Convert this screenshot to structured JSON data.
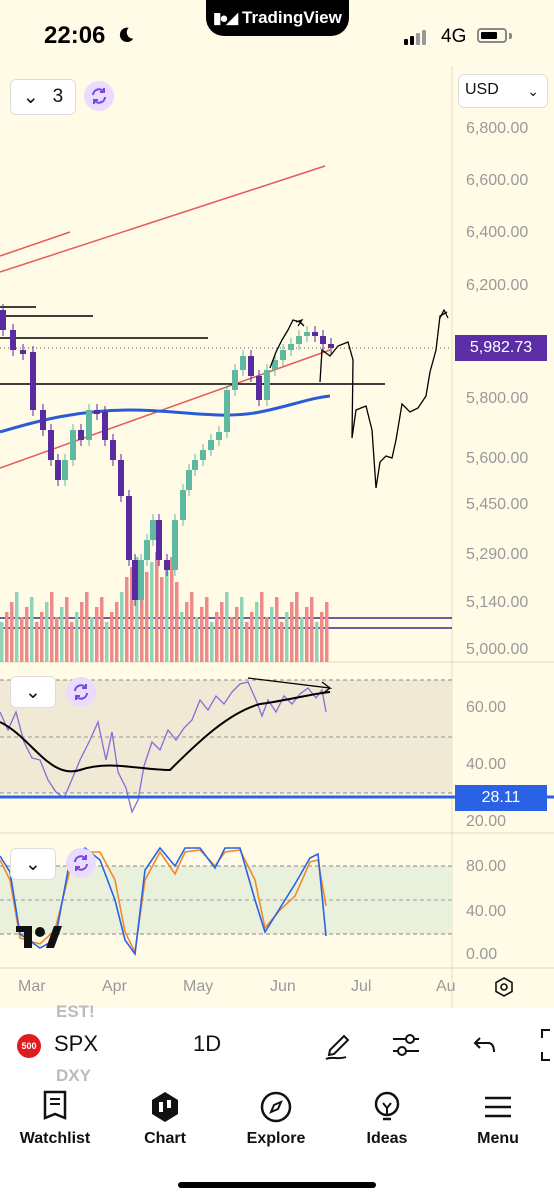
{
  "status_bar": {
    "time": "22:06",
    "network": "4G",
    "app_name": "TradingView"
  },
  "chart": {
    "symbol": "SPX",
    "interval": "1D",
    "currency": "USD",
    "indicator_count": "3",
    "last_price": "5,982.73",
    "rsi_value": "28.11",
    "price_axis": [
      "6,800.00",
      "6,600.00",
      "6,400.00",
      "6,200.00",
      "5,800.00",
      "5,600.00",
      "5,450.00",
      "5,290.00",
      "5,140.00",
      "5,000.00"
    ],
    "rsi_axis": [
      "60.00",
      "40.00",
      "20.00"
    ],
    "stoch_axis": [
      "80.00",
      "40.00",
      "0.00"
    ],
    "time_axis": [
      "Mar",
      "Apr",
      "May",
      "Jun",
      "Jul",
      "Au"
    ],
    "ghost_watchlist": [
      "EST!",
      "DXY"
    ],
    "colors": {
      "price_tag": "#5b2ea6",
      "rsi_tag": "#2a62e6",
      "ma_line": "#2a5bd7",
      "up": "#8fd3b8",
      "down": "#ef8a8a"
    }
  },
  "nav": {
    "items": [
      {
        "label": "Watchlist",
        "icon": "watchlist-icon"
      },
      {
        "label": "Chart",
        "icon": "chart-icon"
      },
      {
        "label": "Explore",
        "icon": "compass-icon"
      },
      {
        "label": "Ideas",
        "icon": "lightbulb-icon"
      },
      {
        "label": "Menu",
        "icon": "hamburger-icon"
      }
    ]
  }
}
